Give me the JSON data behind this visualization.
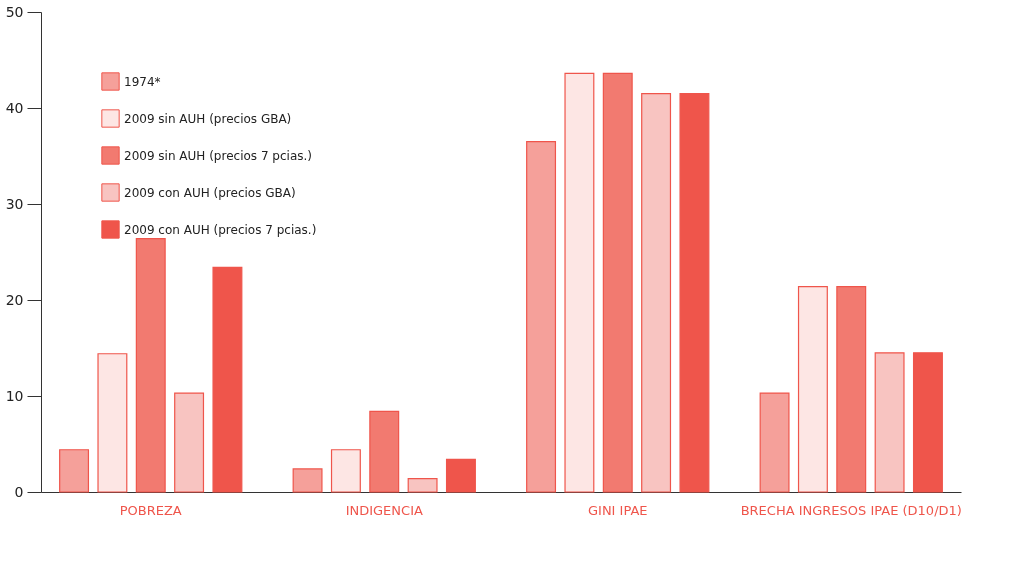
{
  "chart_data": {
    "type": "bar",
    "categories": [
      "POBREZA",
      "INDIGENCIA",
      "GINI IPAE",
      "BRECHA INGRESOS IPAE (D10/D1)"
    ],
    "series": [
      {
        "name": "1974*",
        "color": "#f5a09a",
        "values": [
          4.4,
          2.4,
          36.5,
          10.3
        ]
      },
      {
        "name": "2009 sin AUH (precios GBA)",
        "color": "#fde6e4",
        "values": [
          14.4,
          4.4,
          43.6,
          21.4
        ]
      },
      {
        "name": "2009 sin AUH (precios 7 pcias.)",
        "color": "#f27a70",
        "values": [
          26.4,
          8.4,
          43.6,
          21.4
        ]
      },
      {
        "name": "2009 con AUH (precios GBA)",
        "color": "#f8c4c1",
        "values": [
          10.3,
          1.4,
          41.5,
          14.5
        ]
      },
      {
        "name": "2009 con AUH (precios 7 pcias.)",
        "color": "#ef554b",
        "values": [
          23.4,
          3.4,
          41.5,
          14.5
        ]
      }
    ],
    "ylim": [
      0,
      50
    ],
    "yticks": [
      0,
      10,
      20,
      30,
      40,
      50
    ],
    "grid": false,
    "legend": "top left"
  }
}
